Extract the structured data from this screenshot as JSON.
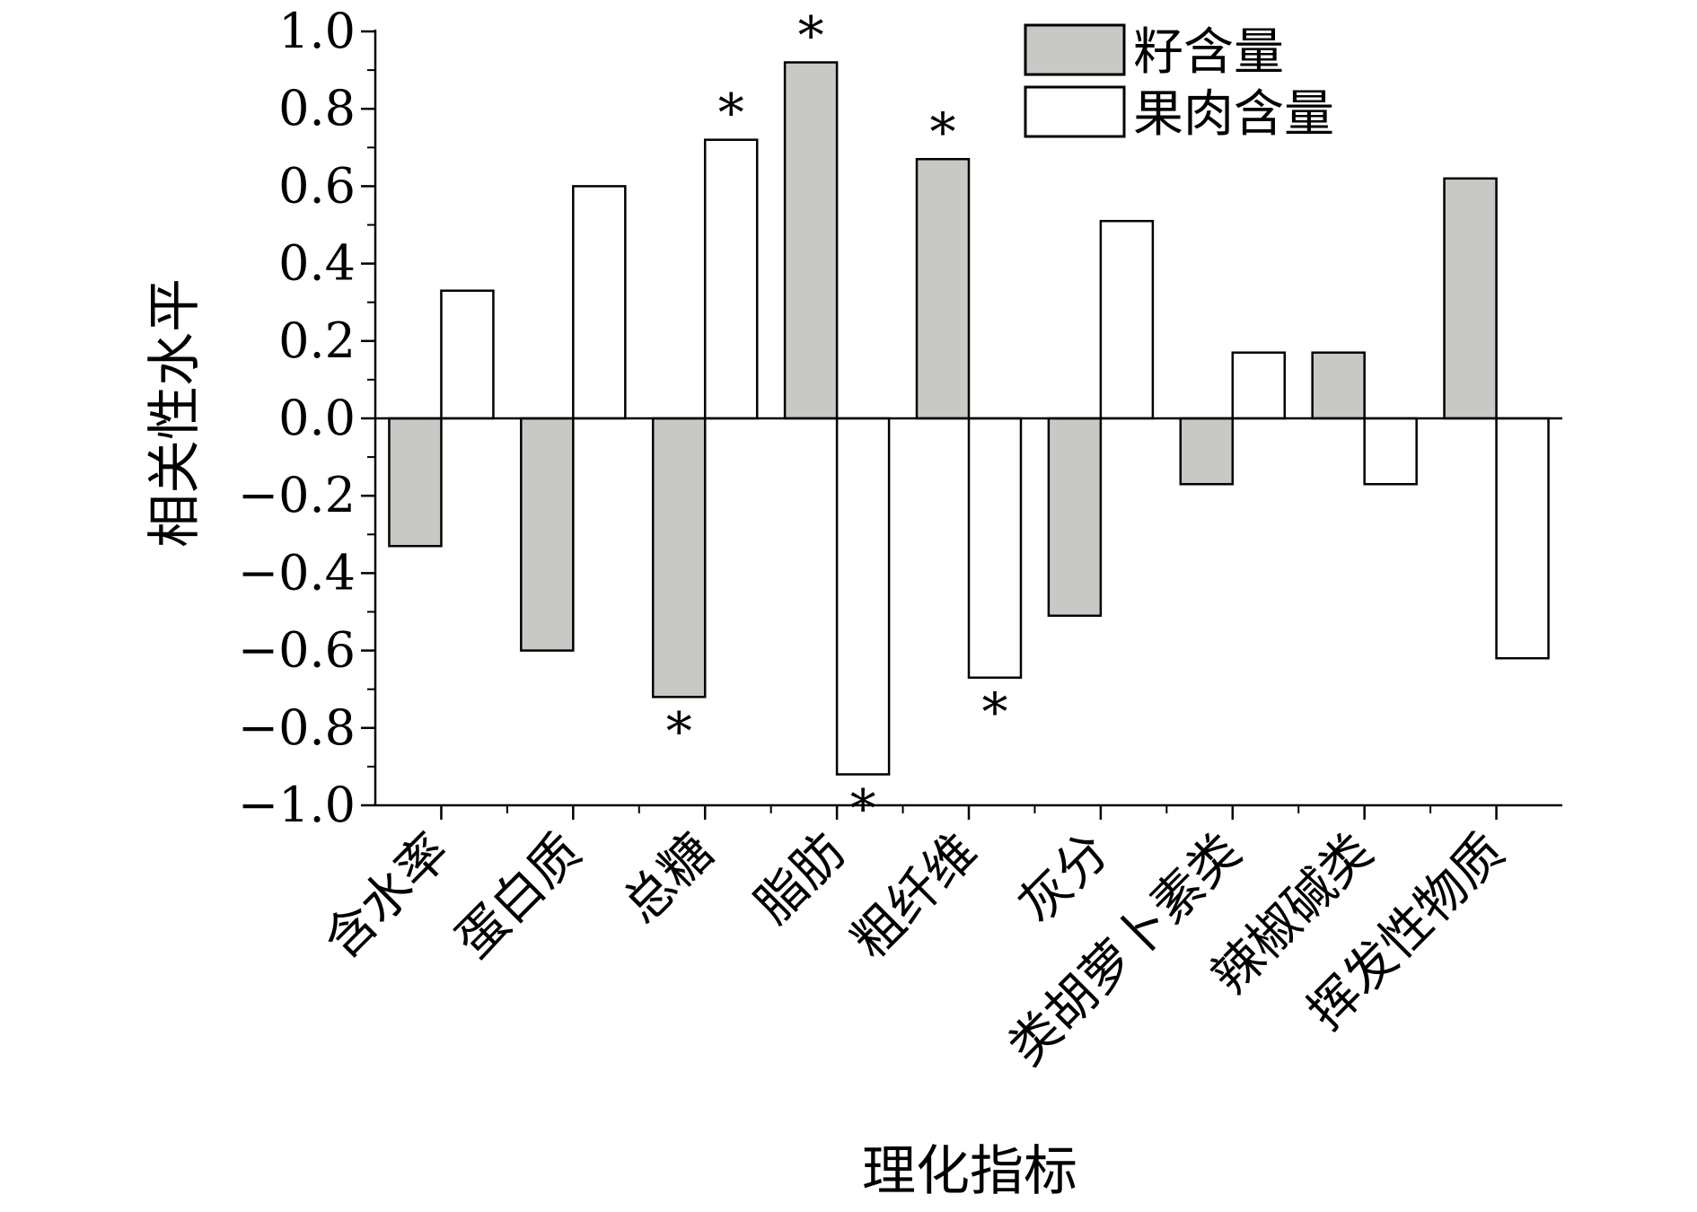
{
  "chart_data": {
    "type": "bar",
    "title": "",
    "xlabel": "理化指标",
    "ylabel": "相关性水平",
    "ylim": [
      -1.0,
      1.0
    ],
    "yticks": [
      "1.0",
      "0.8",
      "0.6",
      "0.4",
      "0.2",
      "0.0",
      "−0.2",
      "−0.4",
      "−0.6",
      "−0.8",
      "−1.0"
    ],
    "ytick_values": [
      1.0,
      0.8,
      0.6,
      0.4,
      0.2,
      0.0,
      -0.2,
      -0.4,
      -0.6,
      -0.8,
      -1.0
    ],
    "categories": [
      "含水率",
      "蛋白质",
      "总糖",
      "脂肪",
      "粗纤维",
      "灰分",
      "类胡萝卜素类",
      "辣椒碱类",
      "挥发性物质"
    ],
    "series": [
      {
        "name": "籽含量",
        "color": "#c8c9c4",
        "values": [
          -0.33,
          -0.6,
          -0.72,
          0.92,
          0.67,
          -0.51,
          -0.17,
          0.17,
          0.62
        ],
        "significant": [
          false,
          false,
          true,
          true,
          true,
          false,
          false,
          false,
          false
        ]
      },
      {
        "name": "果肉含量",
        "color": "#ffffff",
        "values": [
          0.33,
          0.6,
          0.72,
          -0.92,
          -0.67,
          0.51,
          0.17,
          -0.17,
          -0.62
        ],
        "significant": [
          false,
          false,
          true,
          true,
          true,
          false,
          false,
          false,
          false
        ]
      }
    ],
    "significance_marker": "*",
    "legend_position": "top-right",
    "grid": false
  }
}
